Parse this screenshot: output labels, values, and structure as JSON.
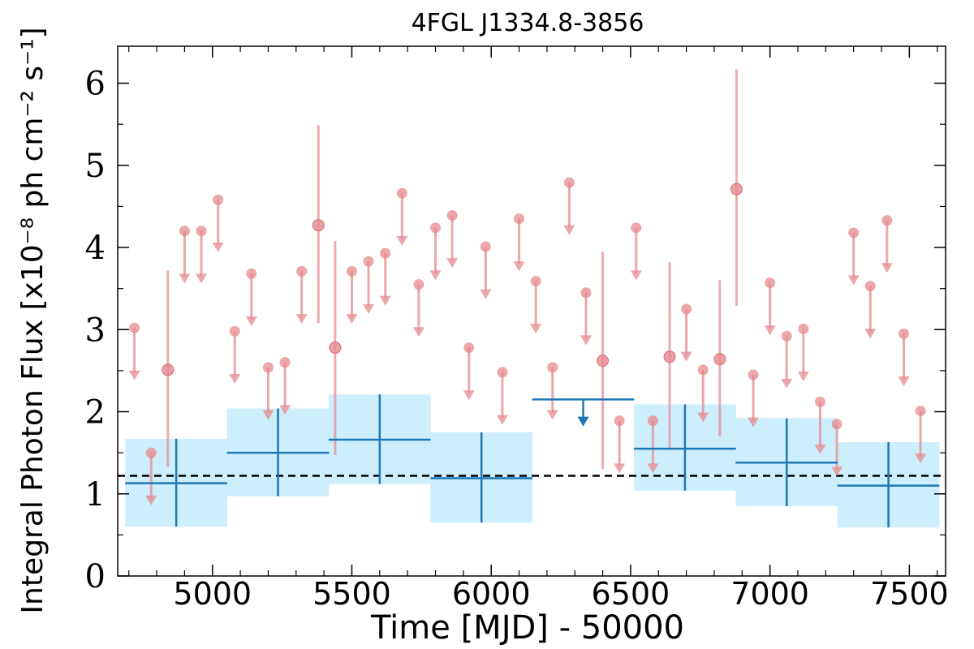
{
  "chart_data": {
    "type": "scatter",
    "title": "4FGL J1334.8-3856",
    "xlabel": "Time [MJD] - 50000",
    "ylabel": "Integral Photon Flux [x10⁻⁸ ph cm⁻² s⁻¹]",
    "xlim": [
      4660,
      7630
    ],
    "ylim": [
      0,
      6.45
    ],
    "xticks": [
      5000,
      5500,
      6000,
      6500,
      7000,
      7500
    ],
    "yticks": [
      0,
      1,
      2,
      3,
      4,
      5,
      6
    ],
    "colors": {
      "short_bins": "#e48a8e",
      "long_bins": "#1f77b4",
      "band": "#cdeefc",
      "mean_line": "#000000"
    },
    "mean_flux": 1.22,
    "long_bins": [
      {
        "x": 4870,
        "xerr": 183,
        "y": 1.13,
        "ylo": 0.6,
        "yhi": 1.67,
        "upper_limit": false
      },
      {
        "x": 5235,
        "xerr": 183,
        "y": 1.5,
        "ylo": 0.97,
        "yhi": 2.04,
        "upper_limit": false
      },
      {
        "x": 5600,
        "xerr": 183,
        "y": 1.66,
        "ylo": 1.12,
        "yhi": 2.21,
        "upper_limit": false
      },
      {
        "x": 5965,
        "xerr": 183,
        "y": 1.19,
        "ylo": 0.65,
        "yhi": 1.75,
        "upper_limit": false
      },
      {
        "x": 6330,
        "xerr": 183,
        "y": 2.15,
        "upper_limit": true
      },
      {
        "x": 6695,
        "xerr": 183,
        "y": 1.55,
        "ylo": 1.04,
        "yhi": 2.09,
        "upper_limit": false
      },
      {
        "x": 7060,
        "xerr": 183,
        "y": 1.38,
        "ylo": 0.85,
        "yhi": 1.92,
        "upper_limit": false
      },
      {
        "x": 7425,
        "xerr": 183,
        "y": 1.1,
        "ylo": 0.59,
        "yhi": 1.63,
        "upper_limit": false
      }
    ],
    "short_bins": [
      {
        "x": 4720,
        "y": 3.02,
        "upper_limit": true
      },
      {
        "x": 4780,
        "y": 1.5,
        "upper_limit": true
      },
      {
        "x": 4840,
        "y": 2.51,
        "ylo": 1.33,
        "yhi": 3.72,
        "upper_limit": false
      },
      {
        "x": 4900,
        "y": 4.2,
        "upper_limit": true
      },
      {
        "x": 4960,
        "y": 4.2,
        "upper_limit": true
      },
      {
        "x": 5020,
        "y": 4.58,
        "upper_limit": true
      },
      {
        "x": 5080,
        "y": 2.98,
        "upper_limit": true
      },
      {
        "x": 5140,
        "y": 3.68,
        "upper_limit": true
      },
      {
        "x": 5200,
        "y": 2.54,
        "upper_limit": true
      },
      {
        "x": 5260,
        "y": 2.6,
        "upper_limit": true
      },
      {
        "x": 5320,
        "y": 3.71,
        "upper_limit": true
      },
      {
        "x": 5380,
        "y": 4.27,
        "ylo": 3.08,
        "yhi": 5.49,
        "upper_limit": false
      },
      {
        "x": 5440,
        "y": 2.78,
        "ylo": 1.47,
        "yhi": 4.08,
        "upper_limit": false
      },
      {
        "x": 5500,
        "y": 3.71,
        "upper_limit": true
      },
      {
        "x": 5560,
        "y": 3.83,
        "upper_limit": true
      },
      {
        "x": 5620,
        "y": 3.93,
        "upper_limit": true
      },
      {
        "x": 5680,
        "y": 4.66,
        "upper_limit": true
      },
      {
        "x": 5740,
        "y": 3.55,
        "upper_limit": true
      },
      {
        "x": 5800,
        "y": 4.24,
        "upper_limit": true
      },
      {
        "x": 5860,
        "y": 4.39,
        "upper_limit": true
      },
      {
        "x": 5920,
        "y": 2.78,
        "upper_limit": true
      },
      {
        "x": 5980,
        "y": 4.01,
        "upper_limit": true
      },
      {
        "x": 6040,
        "y": 2.48,
        "upper_limit": true
      },
      {
        "x": 6100,
        "y": 4.35,
        "upper_limit": true
      },
      {
        "x": 6160,
        "y": 3.59,
        "upper_limit": true
      },
      {
        "x": 6220,
        "y": 2.54,
        "upper_limit": true
      },
      {
        "x": 6280,
        "y": 4.79,
        "upper_limit": true
      },
      {
        "x": 6340,
        "y": 3.45,
        "upper_limit": true
      },
      {
        "x": 6400,
        "y": 2.62,
        "ylo": 1.3,
        "yhi": 3.95,
        "upper_limit": false
      },
      {
        "x": 6460,
        "y": 1.89,
        "upper_limit": true
      },
      {
        "x": 6520,
        "y": 4.24,
        "upper_limit": true
      },
      {
        "x": 6580,
        "y": 1.89,
        "upper_limit": true
      },
      {
        "x": 6640,
        "y": 2.67,
        "ylo": 1.54,
        "yhi": 3.82,
        "upper_limit": false
      },
      {
        "x": 6700,
        "y": 3.25,
        "upper_limit": true
      },
      {
        "x": 6760,
        "y": 2.51,
        "upper_limit": true
      },
      {
        "x": 6820,
        "y": 2.64,
        "ylo": 1.7,
        "yhi": 3.6,
        "upper_limit": false
      },
      {
        "x": 6880,
        "y": 4.71,
        "ylo": 3.29,
        "yhi": 6.17,
        "upper_limit": false
      },
      {
        "x": 6940,
        "y": 2.45,
        "upper_limit": true
      },
      {
        "x": 7000,
        "y": 3.57,
        "upper_limit": true
      },
      {
        "x": 7060,
        "y": 2.92,
        "upper_limit": true
      },
      {
        "x": 7120,
        "y": 3.01,
        "upper_limit": true
      },
      {
        "x": 7180,
        "y": 2.12,
        "upper_limit": true
      },
      {
        "x": 7240,
        "y": 1.85,
        "upper_limit": true
      },
      {
        "x": 7300,
        "y": 4.18,
        "upper_limit": true
      },
      {
        "x": 7360,
        "y": 3.53,
        "upper_limit": true
      },
      {
        "x": 7420,
        "y": 4.33,
        "upper_limit": true
      },
      {
        "x": 7480,
        "y": 2.95,
        "upper_limit": true
      },
      {
        "x": 7540,
        "y": 2.01,
        "upper_limit": true
      }
    ]
  }
}
